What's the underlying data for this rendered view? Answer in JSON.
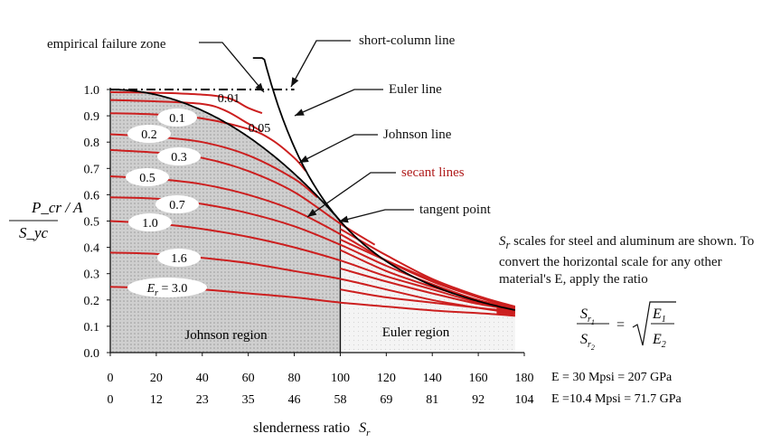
{
  "chart_data": {
    "type": "line",
    "xlabel": "slenderness ratio",
    "xlabel_var": "S",
    "xlabel_sub": "r",
    "ylabel": {
      "numerator": "P_cr / A",
      "denominator": "S_yc"
    },
    "xlim": [
      0,
      180
    ],
    "ylim": [
      0.0,
      1.0
    ],
    "x_ticks_steel": [
      0,
      20,
      40,
      60,
      80,
      100,
      120,
      140,
      160,
      180
    ],
    "x_ticks_aluminum": [
      0,
      12,
      23,
      35,
      46,
      58,
      69,
      81,
      92,
      104
    ],
    "y_ticks": [
      "0.0",
      "0.1",
      "0.2",
      "0.3",
      "0.4",
      "0.5",
      "0.6",
      "0.7",
      "0.8",
      "0.9",
      "1.0"
    ],
    "tangent_point": {
      "x": 100,
      "y": 0.5
    },
    "euler_line": {
      "x_start": 62,
      "x_end": 176,
      "note": "y = 5000 / x^2"
    },
    "johnson_line": {
      "x_start": 0,
      "x_end": 100,
      "note": "y = 1 - x^2 / 20000"
    },
    "short_column_line": {
      "x_start": 0,
      "x_end": 80,
      "y": 1.0
    },
    "secant_lines": [
      {
        "label": "0.01",
        "x": [
          0,
          30,
          50,
          60,
          66
        ],
        "y": [
          0.99,
          0.985,
          0.97,
          0.93,
          0.91
        ]
      },
      {
        "label": "0.05",
        "x": [
          0,
          20,
          40,
          50,
          60,
          66
        ],
        "y": [
          0.96,
          0.955,
          0.945,
          0.92,
          0.87,
          0.84
        ]
      },
      {
        "label": "0.1",
        "x": [
          0,
          20,
          40,
          60,
          70,
          80,
          85
        ],
        "y": [
          0.91,
          0.905,
          0.89,
          0.85,
          0.81,
          0.74,
          0.69
        ]
      },
      {
        "label": "0.2",
        "x": [
          0,
          20,
          40,
          60,
          80,
          90
        ],
        "y": [
          0.83,
          0.82,
          0.8,
          0.75,
          0.66,
          0.59
        ]
      },
      {
        "label": "0.3",
        "x": [
          0,
          20,
          40,
          60,
          80,
          100,
          115
        ],
        "y": [
          0.77,
          0.76,
          0.74,
          0.69,
          0.61,
          0.49,
          0.41
        ]
      },
      {
        "label": "0.5",
        "x": [
          0,
          20,
          40,
          60,
          80,
          100,
          120,
          140,
          160,
          176
        ],
        "y": [
          0.67,
          0.66,
          0.64,
          0.6,
          0.54,
          0.45,
          0.35,
          0.27,
          0.21,
          0.17
        ]
      },
      {
        "label": "0.7",
        "x": [
          0,
          20,
          40,
          60,
          80,
          100,
          120,
          140,
          160,
          176
        ],
        "y": [
          0.59,
          0.585,
          0.565,
          0.53,
          0.48,
          0.41,
          0.33,
          0.26,
          0.2,
          0.17
        ]
      },
      {
        "label": "1.0",
        "x": [
          0,
          20,
          40,
          60,
          80,
          100,
          120,
          140,
          160,
          176
        ],
        "y": [
          0.5,
          0.49,
          0.47,
          0.44,
          0.4,
          0.35,
          0.29,
          0.24,
          0.19,
          0.16
        ]
      },
      {
        "label": "1.6",
        "x": [
          0,
          20,
          40,
          60,
          80,
          100,
          120,
          140,
          160,
          176
        ],
        "y": [
          0.38,
          0.375,
          0.36,
          0.34,
          0.31,
          0.28,
          0.24,
          0.2,
          0.17,
          0.15
        ]
      },
      {
        "label": "E_r = 3.0",
        "x": [
          0,
          20,
          40,
          60,
          80,
          100,
          120,
          140,
          160,
          176
        ],
        "y": [
          0.25,
          0.245,
          0.24,
          0.225,
          0.21,
          0.19,
          0.175,
          0.16,
          0.15,
          0.14
        ]
      }
    ],
    "extra_secant_lines_right": [
      {
        "x": [
          100,
          120,
          140,
          160,
          176
        ],
        "y": [
          0.47,
          0.37,
          0.28,
          0.215,
          0.175
        ]
      },
      {
        "x": [
          100,
          120,
          140,
          160,
          176
        ],
        "y": [
          0.43,
          0.35,
          0.275,
          0.21,
          0.172
        ]
      },
      {
        "x": [
          100,
          120,
          140,
          160,
          176
        ],
        "y": [
          0.39,
          0.31,
          0.25,
          0.2,
          0.168
        ]
      },
      {
        "x": [
          100,
          120,
          140,
          160,
          176
        ],
        "y": [
          0.32,
          0.27,
          0.225,
          0.185,
          0.162
        ]
      },
      {
        "x": [
          100,
          120,
          140,
          160,
          176
        ],
        "y": [
          0.24,
          0.21,
          0.19,
          0.17,
          0.155
        ]
      }
    ],
    "regions": {
      "johnson": "Johnson region",
      "euler": "Euler region"
    },
    "annotations": {
      "empirical_failure_zone": "empirical failure zone",
      "short_column_line": "short-column line",
      "euler_line": "Euler line",
      "johnson_line": "Johnson line",
      "secant_lines": "secant lines",
      "tangent_point": "tangent point"
    },
    "scale_rows": {
      "steel": "E = 30  Mpsi  = 207 GPa",
      "aluminum": "E =10.4 Mpsi = 71.7 GPa"
    },
    "note_text": "scales for steel and aluminum are shown. To convert the horizontal scale for any other material's E, apply the ratio",
    "note_var": "S",
    "note_sub": "r",
    "formula": {
      "lhs_num": "S",
      "lhs_num_sub": "r",
      "lhs_num_sub2": "1",
      "lhs_den": "S",
      "lhs_den_sub": "r",
      "lhs_den_sub2": "2",
      "eq": "=",
      "rhs_num": "E",
      "rhs_num_sub": "1",
      "rhs_den": "E",
      "rhs_den_sub": "2"
    },
    "colors": {
      "secant": "#cc1f1f",
      "curve": "#000000",
      "johnson_region": "#c9c9c9",
      "euler_region": "#f1f1f1",
      "secant_label": "#b01c1c"
    }
  }
}
